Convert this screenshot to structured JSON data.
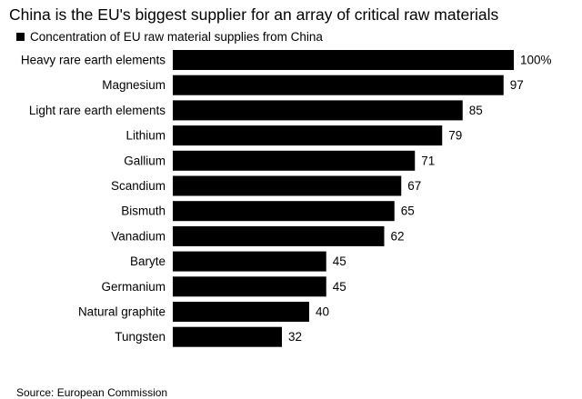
{
  "title": "China is the EU's biggest supplier for an array of critical raw materials",
  "legend": {
    "label": "Concentration of EU raw material supplies from China",
    "color": "#000000"
  },
  "source": "Source: European Commission",
  "chart_data": {
    "type": "bar",
    "orientation": "horizontal",
    "categories": [
      "Heavy rare earth elements",
      "Magnesium",
      "Light rare earth elements",
      "Lithium",
      "Gallium",
      "Scandium",
      "Bismuth",
      "Vanadium",
      "Baryte",
      "Germanium",
      "Natural graphite",
      "Tungsten"
    ],
    "values": [
      100,
      97,
      85,
      79,
      71,
      67,
      65,
      62,
      45,
      45,
      40,
      32
    ],
    "data_labels": [
      "100%",
      "97",
      "85",
      "79",
      "71",
      "67",
      "65",
      "62",
      "45",
      "45",
      "40",
      "32"
    ],
    "series": [
      {
        "name": "Concentration of EU raw material supplies from China",
        "values": [
          100,
          97,
          85,
          79,
          71,
          67,
          65,
          62,
          45,
          45,
          40,
          32
        ]
      }
    ],
    "xlim": [
      0,
      100
    ],
    "unit": "%",
    "bar_color": "#000000",
    "grid": false,
    "legend_position": "top-left"
  }
}
